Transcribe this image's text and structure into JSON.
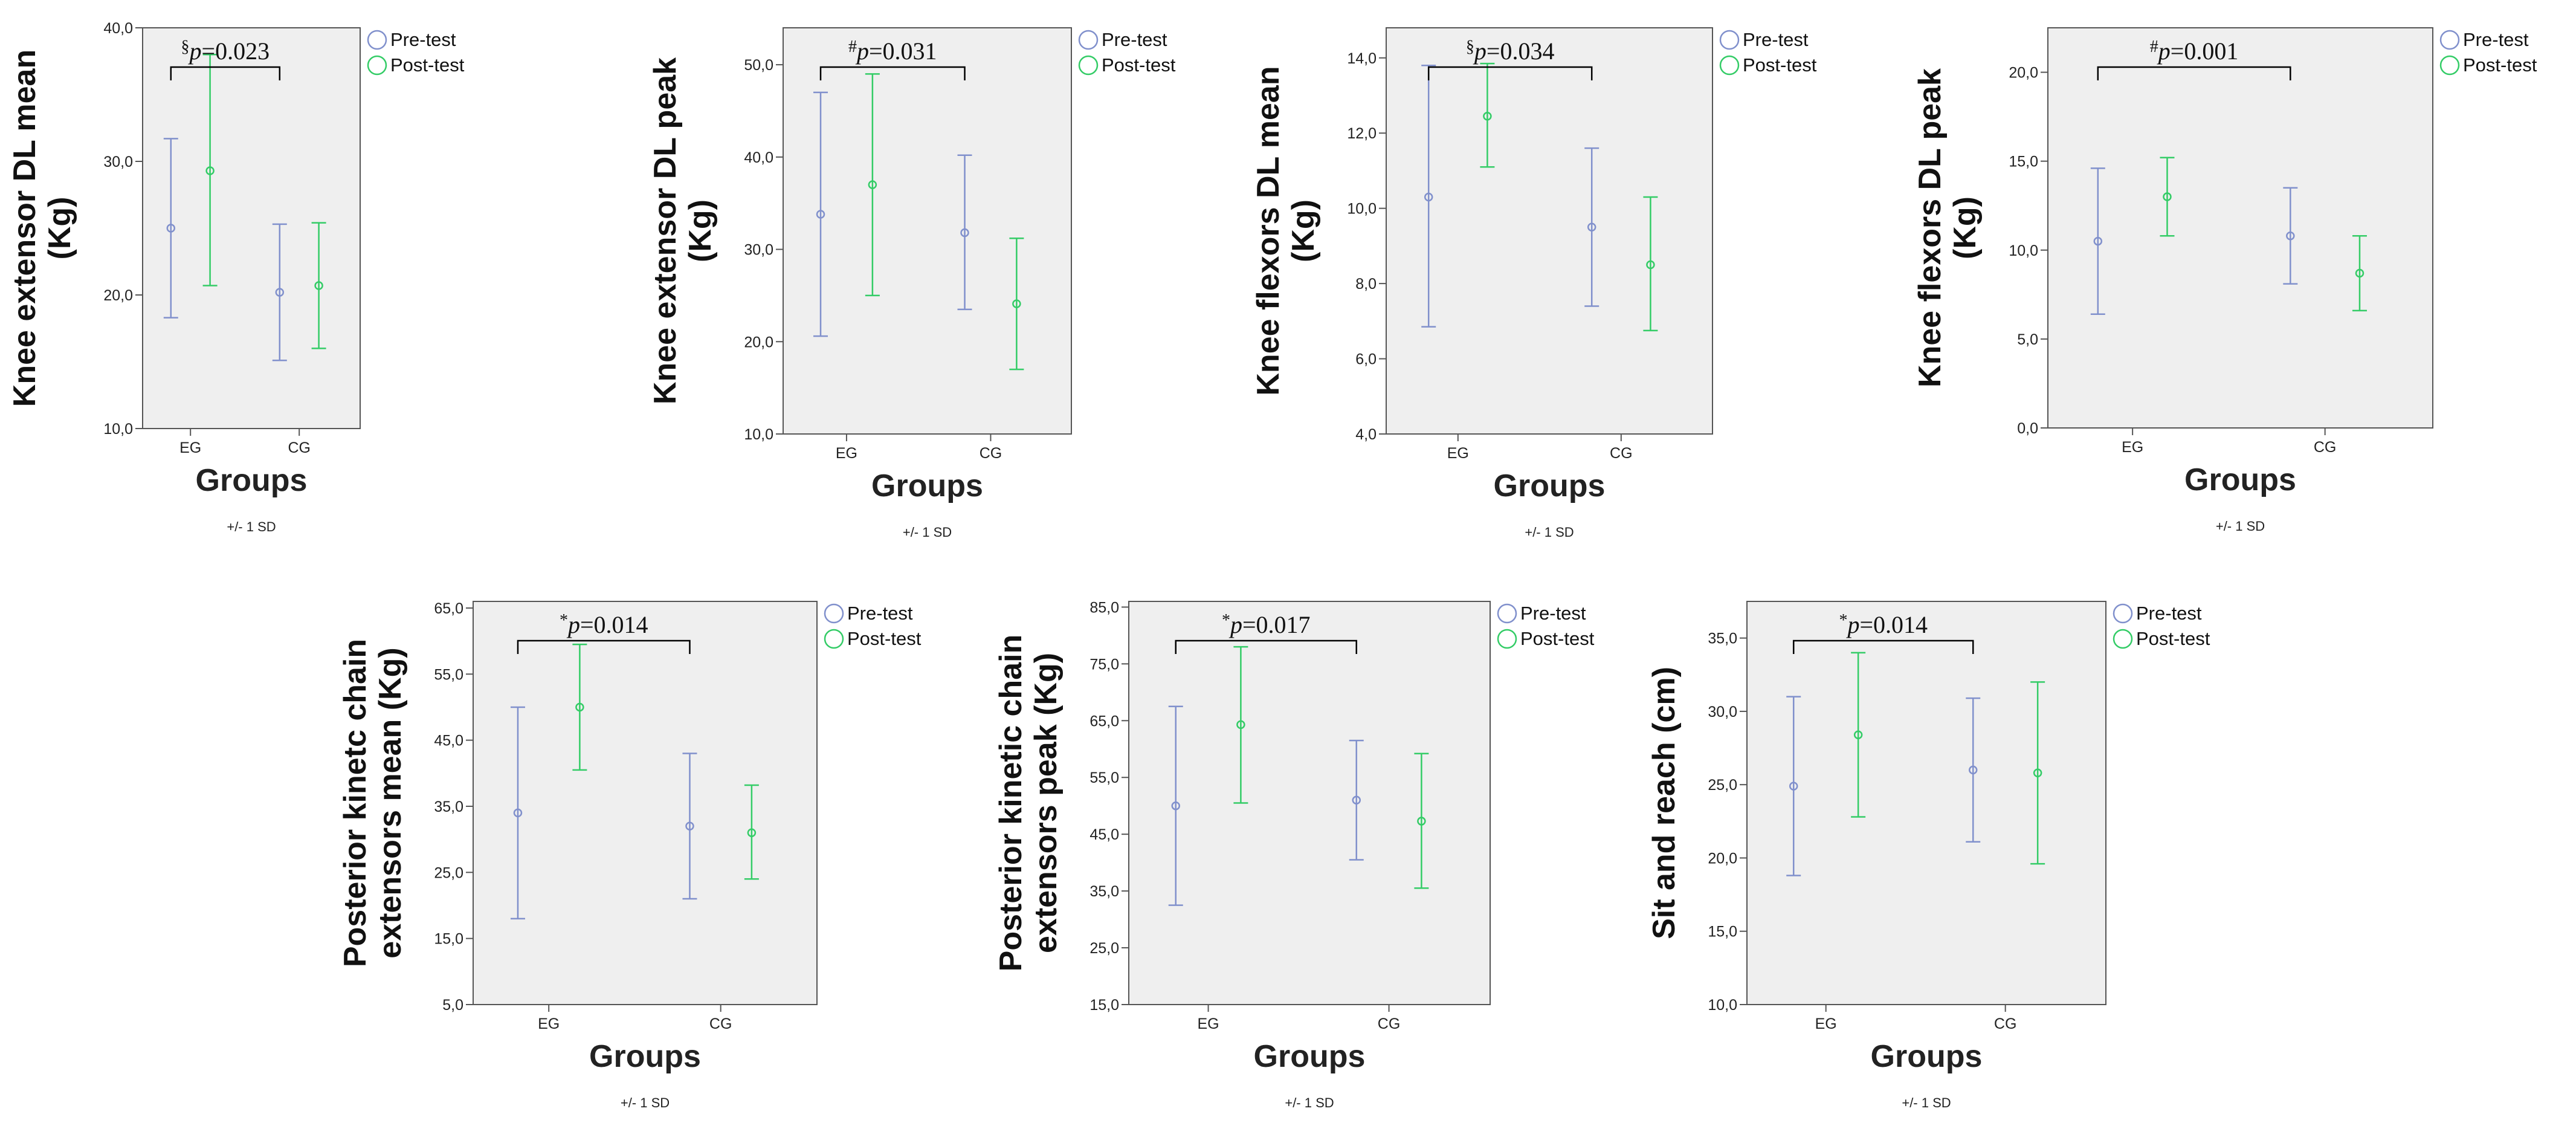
{
  "colors": {
    "pre": "#8090cc",
    "post": "#33cc66",
    "bracket": "#000000",
    "plot_bg": "#efefef",
    "axis": "#555555"
  },
  "legend": {
    "pre_label": "Pre-test",
    "post_label": "Post-test"
  },
  "common": {
    "xlabel": "Groups",
    "footnote": "+/- 1 SD",
    "categories": [
      "EG",
      "CG"
    ],
    "p_prefix": "p="
  },
  "chart_data": [
    {
      "type": "errorbar",
      "ylabel": "Knee extensor DL mean (Kg)",
      "ylabel_lines": [
        "Knee extensor DL mean",
        "(Kg)"
      ],
      "xlabel": "Groups",
      "footnote": "+/- 1 SD",
      "categories": [
        "EG",
        "CG"
      ],
      "ylim": [
        10,
        40
      ],
      "yticks": [
        "10,0",
        "20,0",
        "30,0",
        "40,0"
      ],
      "ytick_values": [
        10,
        20,
        30,
        40
      ],
      "series": [
        {
          "name": "Pre-test",
          "mean": [
            25.0,
            20.2
          ],
          "lower": [
            18.3,
            15.1
          ],
          "upper": [
            31.7,
            25.3
          ]
        },
        {
          "name": "Post-test",
          "mean": [
            29.3,
            20.7
          ],
          "lower": [
            20.7,
            16.0
          ],
          "upper": [
            38.0,
            25.4
          ]
        }
      ],
      "annotation": {
        "symbol": "§",
        "p": "0.023"
      }
    },
    {
      "type": "errorbar",
      "ylabel": "Knee extensor DL peak (Kg)",
      "ylabel_lines": [
        "Knee extensor DL peak",
        "(Kg)"
      ],
      "xlabel": "Groups",
      "footnote": "+/- 1 SD",
      "categories": [
        "EG",
        "CG"
      ],
      "ylim": [
        10,
        54
      ],
      "yticks": [
        "10,0",
        "20,0",
        "30,0",
        "40,0",
        "50,0"
      ],
      "ytick_values": [
        10,
        20,
        30,
        40,
        50
      ],
      "series": [
        {
          "name": "Pre-test",
          "mean": [
            33.8,
            31.8
          ],
          "lower": [
            20.6,
            23.5
          ],
          "upper": [
            47.0,
            40.2
          ]
        },
        {
          "name": "Post-test",
          "mean": [
            37.0,
            24.1
          ],
          "lower": [
            25.0,
            17.0
          ],
          "upper": [
            49.0,
            31.2
          ]
        }
      ],
      "annotation": {
        "symbol": "#",
        "p": "0.031"
      }
    },
    {
      "type": "errorbar",
      "ylabel": "Knee flexors DL mean (Kg)",
      "ylabel_lines": [
        "Knee flexors DL mean",
        "(Kg)"
      ],
      "xlabel": "Groups",
      "footnote": "+/- 1 SD",
      "categories": [
        "EG",
        "CG"
      ],
      "ylim": [
        4,
        14.8
      ],
      "yticks": [
        "4,0",
        "6,0",
        "8,0",
        "10,0",
        "12,0",
        "14,0"
      ],
      "ytick_values": [
        4,
        6,
        8,
        10,
        12,
        14
      ],
      "series": [
        {
          "name": "Pre-test",
          "mean": [
            10.3,
            9.5
          ],
          "lower": [
            6.85,
            7.4
          ],
          "upper": [
            13.8,
            11.6
          ]
        },
        {
          "name": "Post-test",
          "mean": [
            12.45,
            8.5
          ],
          "lower": [
            11.1,
            6.75
          ],
          "upper": [
            13.85,
            10.3
          ]
        }
      ],
      "annotation": {
        "symbol": "§",
        "p": "0.034"
      }
    },
    {
      "type": "errorbar",
      "ylabel": "Knee flexors DL peak (Kg)",
      "ylabel_lines": [
        "Knee flexors DL peak",
        "(Kg)"
      ],
      "xlabel": "Groups",
      "footnote": "+/- 1 SD",
      "categories": [
        "EG",
        "CG"
      ],
      "ylim": [
        0,
        22.5
      ],
      "yticks": [
        "0,0",
        "5,0",
        "10,0",
        "15,0",
        "20,0"
      ],
      "ytick_values": [
        0,
        5,
        10,
        15,
        20
      ],
      "series": [
        {
          "name": "Pre-test",
          "mean": [
            10.5,
            10.8
          ],
          "lower": [
            6.4,
            8.1
          ],
          "upper": [
            14.6,
            13.5
          ]
        },
        {
          "name": "Post-test",
          "mean": [
            13.0,
            8.7
          ],
          "lower": [
            10.8,
            6.6
          ],
          "upper": [
            15.2,
            10.8
          ]
        }
      ],
      "annotation": {
        "symbol": "#",
        "p": "0.001"
      }
    },
    {
      "type": "errorbar",
      "ylabel": "Posterior kinetc chain extensors mean (Kg)",
      "ylabel_lines": [
        "Posterior kinetc chain",
        "extensors mean (Kg)"
      ],
      "xlabel": "Groups",
      "footnote": "+/- 1 SD",
      "categories": [
        "EG",
        "CG"
      ],
      "ylim": [
        5,
        66
      ],
      "yticks": [
        "5,0",
        "15,0",
        "25,0",
        "35,0",
        "45,0",
        "55,0",
        "65,0"
      ],
      "ytick_values": [
        5,
        15,
        25,
        35,
        45,
        55,
        65
      ],
      "series": [
        {
          "name": "Pre-test",
          "mean": [
            34.0,
            32.0
          ],
          "lower": [
            18.0,
            21.0
          ],
          "upper": [
            50.0,
            43.0
          ]
        },
        {
          "name": "Post-test",
          "mean": [
            50.0,
            31.0
          ],
          "lower": [
            40.5,
            24.0
          ],
          "upper": [
            59.5,
            38.2
          ]
        }
      ],
      "annotation": {
        "symbol": "*",
        "p": "0.014"
      }
    },
    {
      "type": "errorbar",
      "ylabel": "Posterior kinetic chain extensors peak (Kg)",
      "ylabel_lines": [
        "Posterior kinetic chain",
        "extensors peak (Kg)"
      ],
      "xlabel": "Groups",
      "footnote": "+/- 1 SD",
      "categories": [
        "EG",
        "CG"
      ],
      "ylim": [
        15,
        86
      ],
      "yticks": [
        "15,0",
        "25,0",
        "35,0",
        "45,0",
        "55,0",
        "65,0",
        "75,0",
        "85,0"
      ],
      "ytick_values": [
        15,
        25,
        35,
        45,
        55,
        65,
        75,
        85
      ],
      "series": [
        {
          "name": "Pre-test",
          "mean": [
            50.0,
            51.0
          ],
          "lower": [
            32.5,
            40.5
          ],
          "upper": [
            67.5,
            61.5
          ]
        },
        {
          "name": "Post-test",
          "mean": [
            64.3,
            47.3
          ],
          "lower": [
            50.5,
            35.5
          ],
          "upper": [
            78.0,
            59.2
          ]
        }
      ],
      "annotation": {
        "symbol": "*",
        "p": "0.017"
      }
    },
    {
      "type": "errorbar",
      "ylabel": "Sit and reach (cm)",
      "ylabel_lines": [
        "Sit and reach (cm)"
      ],
      "xlabel": "Groups",
      "footnote": "+/- 1 SD",
      "categories": [
        "EG",
        "CG"
      ],
      "ylim": [
        10,
        37.5
      ],
      "yticks": [
        "10,0",
        "15,0",
        "20,0",
        "25,0",
        "30,0",
        "35,0"
      ],
      "ytick_values": [
        10,
        15,
        20,
        25,
        30,
        35
      ],
      "series": [
        {
          "name": "Pre-test",
          "mean": [
            24.9,
            26.0
          ],
          "lower": [
            18.8,
            21.1
          ],
          "upper": [
            31.0,
            30.9
          ]
        },
        {
          "name": "Post-test",
          "mean": [
            28.4,
            25.8
          ],
          "lower": [
            22.8,
            19.6
          ],
          "upper": [
            34.0,
            32.0
          ]
        }
      ],
      "annotation": {
        "symbol": "*",
        "p": "0.014"
      }
    }
  ]
}
